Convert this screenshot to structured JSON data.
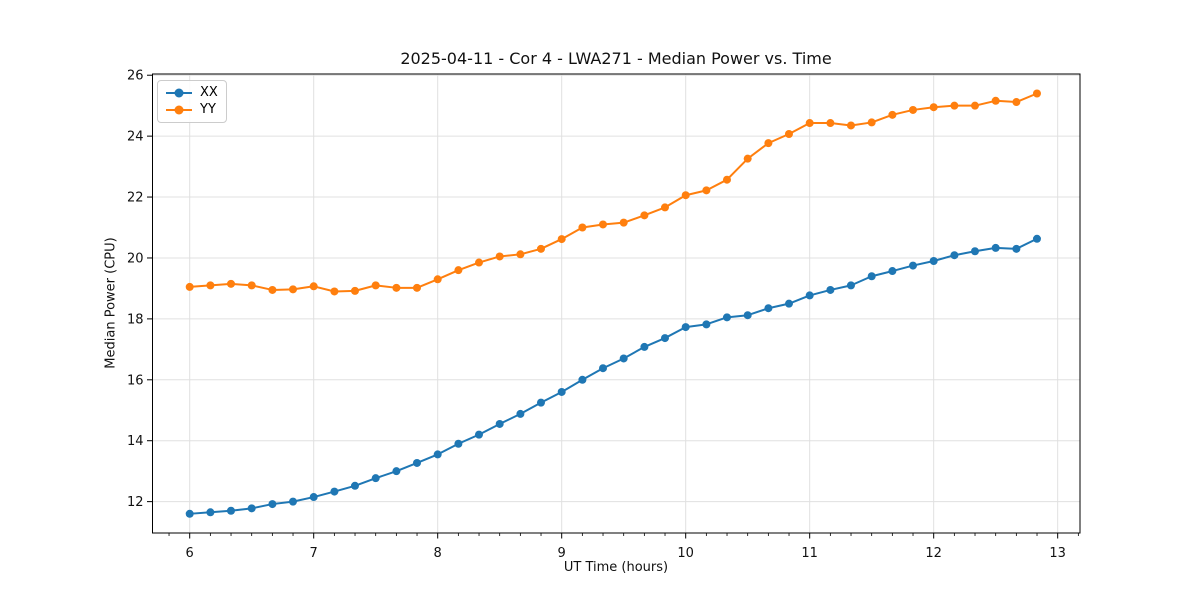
{
  "chart_data": {
    "type": "line",
    "title": "2025-04-11 - Cor 4 - LWA271 - Median Power vs. Time",
    "xlabel": "UT Time (hours)",
    "ylabel": "Median Power (CPU)",
    "xlim": [
      5.7,
      13.18
    ],
    "ylim": [
      10.97,
      26.04
    ],
    "xticks": [
      6,
      7,
      8,
      9,
      10,
      11,
      12,
      13
    ],
    "yticks": [
      12,
      14,
      16,
      18,
      20,
      22,
      24,
      26
    ],
    "minor_ticks_x_per_hour": 6,
    "grid": true,
    "legend_position": "upper left",
    "x": [
      6.0,
      6.167,
      6.333,
      6.5,
      6.667,
      6.833,
      7.0,
      7.167,
      7.333,
      7.5,
      7.667,
      7.833,
      8.0,
      8.167,
      8.333,
      8.5,
      8.667,
      8.833,
      9.0,
      9.167,
      9.333,
      9.5,
      9.667,
      9.833,
      10.0,
      10.167,
      10.333,
      10.5,
      10.667,
      10.833,
      11.0,
      11.167,
      11.333,
      11.5,
      11.667,
      11.833,
      12.0,
      12.167,
      12.333,
      12.5,
      12.667,
      12.833
    ],
    "series": [
      {
        "name": "XX",
        "color": "#1f77b4",
        "values": [
          11.6,
          11.65,
          11.7,
          11.78,
          11.92,
          12.0,
          12.15,
          12.33,
          12.52,
          12.77,
          13.0,
          13.27,
          13.55,
          13.9,
          14.2,
          14.55,
          14.88,
          15.25,
          15.6,
          16.0,
          16.38,
          16.7,
          17.08,
          17.37,
          17.73,
          17.82,
          18.05,
          18.12,
          18.35,
          18.5,
          18.77,
          18.95,
          19.1,
          19.4,
          19.57,
          19.75,
          19.9,
          20.09,
          20.22,
          20.33,
          20.3,
          20.63
        ]
      },
      {
        "name": "YY",
        "color": "#ff7f0e",
        "values": [
          19.05,
          19.1,
          19.15,
          19.1,
          18.95,
          18.97,
          19.07,
          18.9,
          18.92,
          19.1,
          19.02,
          19.02,
          19.3,
          19.6,
          19.85,
          20.05,
          20.12,
          20.3,
          20.62,
          21.0,
          21.1,
          21.16,
          21.4,
          21.66,
          22.06,
          22.22,
          22.57,
          23.26,
          23.77,
          24.07,
          24.43,
          24.43,
          24.35,
          24.45,
          24.7,
          24.86,
          24.95,
          25.0,
          25.0,
          25.16,
          25.12,
          25.4
        ]
      }
    ],
    "colors": {
      "grid": "#e0e0e0",
      "spine": "#000000",
      "tick_label": "#111111",
      "background": "#ffffff"
    }
  }
}
